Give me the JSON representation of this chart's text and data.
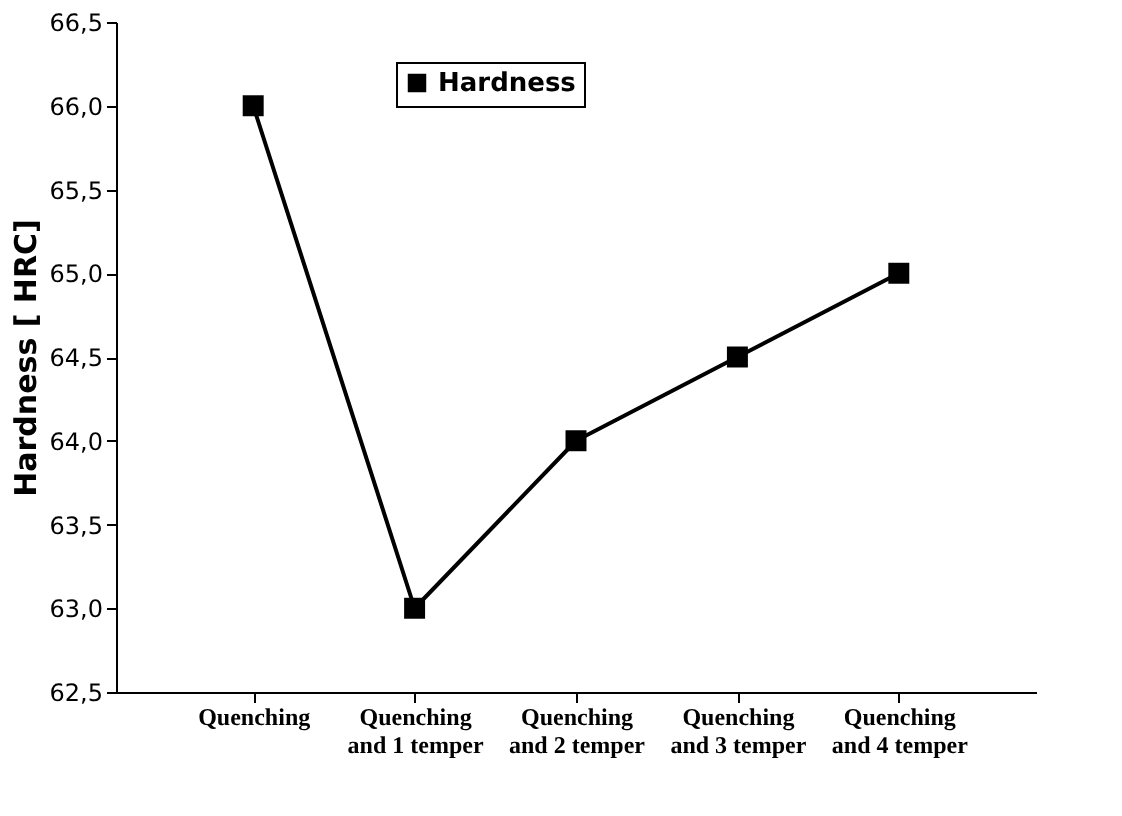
{
  "chart_data": {
    "type": "line",
    "ylabel": "Hardness [ HRC]",
    "categories": [
      "Quenching",
      "Quenching and 1 temper",
      "Quenching and 2 temper",
      "Quenching and 3 temper",
      "Quenching and 4 temper"
    ],
    "series": [
      {
        "name": "Hardness",
        "color": "#000000",
        "values": [
          66.0,
          63.0,
          64.0,
          64.5,
          65.0
        ]
      }
    ],
    "ylim": [
      62.5,
      66.5
    ],
    "yticks": [
      {
        "value": 62.5,
        "label": "62,5"
      },
      {
        "value": 63.0,
        "label": "63,0"
      },
      {
        "value": 63.5,
        "label": "63,5"
      },
      {
        "value": 64.0,
        "label": "64,0"
      },
      {
        "value": 64.5,
        "label": "64,5"
      },
      {
        "value": 65.0,
        "label": "65,0"
      },
      {
        "value": 65.5,
        "label": "65,5"
      },
      {
        "value": 66.0,
        "label": "66,0"
      },
      {
        "value": 66.5,
        "label": "66,5"
      }
    ],
    "marker": "square",
    "line_style": "solid",
    "legend": "top",
    "grid": false
  }
}
